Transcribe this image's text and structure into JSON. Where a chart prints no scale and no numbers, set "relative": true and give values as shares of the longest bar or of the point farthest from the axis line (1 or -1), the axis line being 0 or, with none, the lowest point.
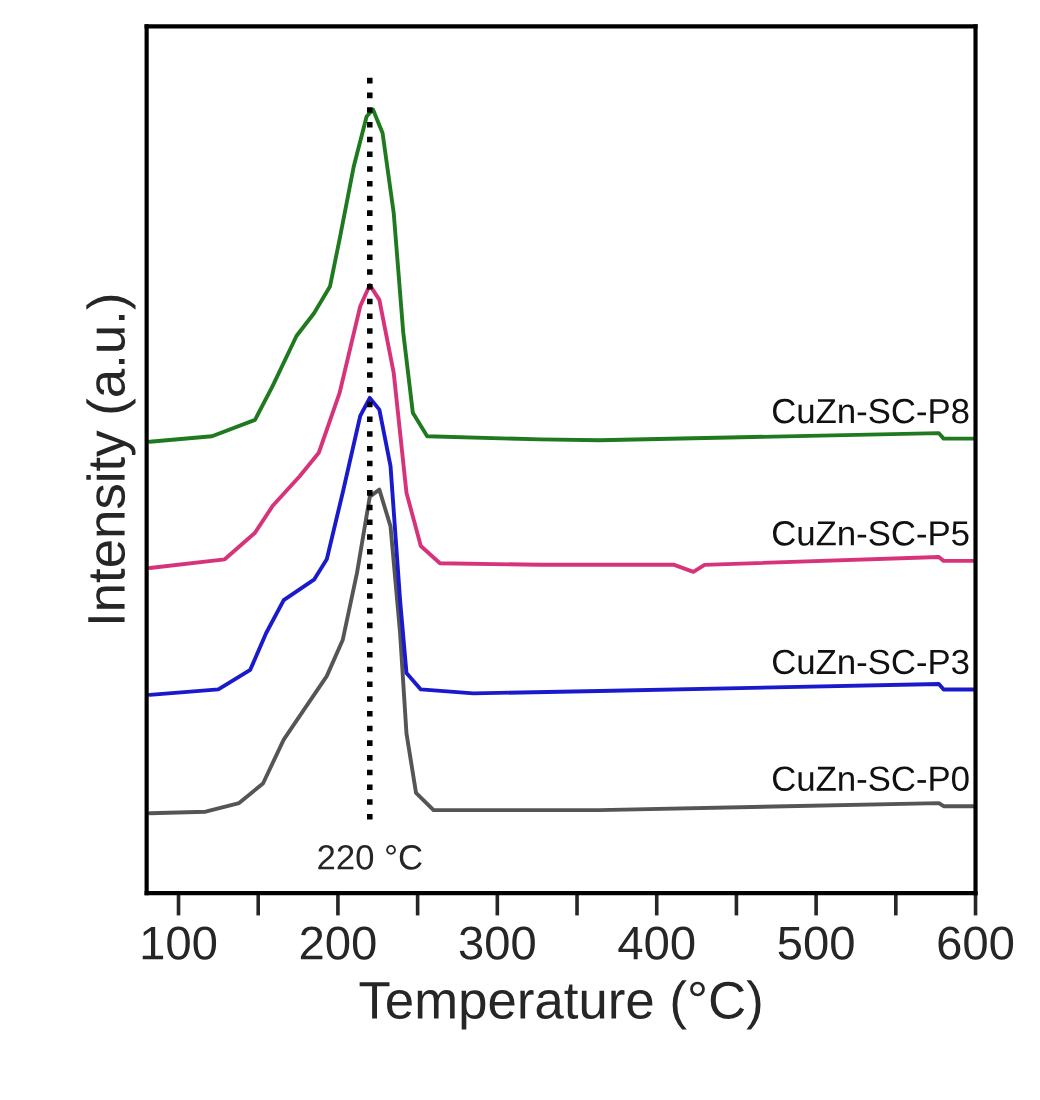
{
  "chart_data": {
    "type": "line",
    "relative": true,
    "xlabel": "Temperature (°C)",
    "ylabel": "Intensity (a.u.)",
    "xlim": [
      80,
      600
    ],
    "xticks": [
      100,
      {
        "value": 150,
        "label": null
      },
      200,
      {
        "value": 250,
        "label": null
      },
      300,
      {
        "value": 350,
        "label": null
      },
      400,
      {
        "value": 450,
        "label": null
      },
      500,
      {
        "value": 550,
        "label": null
      },
      600
    ],
    "tick_labels": "x",
    "grid": false,
    "legend": false,
    "marker": "none",
    "line_style": "solid",
    "ref_lines": [
      {
        "axis": "x",
        "value": 220,
        "label": "220 °C",
        "color": "#000000",
        "line_style": "dotted"
      }
    ],
    "series": [
      {
        "name": "CuZn-SC-P0",
        "color": "#555555",
        "x": [
          82,
          117,
          138,
          153,
          166,
          180,
          193,
          203,
          212,
          220,
          226,
          233,
          239,
          243,
          249,
          260,
          327,
          364,
          577,
          580,
          600
        ],
        "values": [
          0.102,
          0.104,
          0.115,
          0.14,
          0.196,
          0.238,
          0.277,
          0.323,
          0.409,
          0.506,
          0.515,
          0.468,
          0.332,
          0.204,
          0.128,
          0.106,
          0.106,
          0.106,
          0.115,
          0.111,
          0.111
        ]
      },
      {
        "name": "CuZn-SC-P3",
        "color": "#1a1acc",
        "x": [
          82,
          125,
          145,
          155,
          166,
          185,
          193,
          203,
          214,
          220,
          226,
          233,
          239,
          243,
          252,
          285,
          364,
          577,
          580,
          600
        ],
        "values": [
          0.253,
          0.26,
          0.285,
          0.332,
          0.374,
          0.4,
          0.426,
          0.511,
          0.609,
          0.632,
          0.617,
          0.545,
          0.374,
          0.281,
          0.26,
          0.255,
          0.258,
          0.267,
          0.26,
          0.26
        ]
      },
      {
        "name": "CuZn-SC-P5",
        "color": "#d6337a",
        "x": [
          82,
          129,
          148,
          159,
          176,
          188,
          201,
          214,
          220,
          226,
          235,
          243,
          252,
          264,
          327,
          411,
          423,
          430,
          577,
          580,
          600
        ],
        "values": [
          0.415,
          0.426,
          0.46,
          0.494,
          0.532,
          0.562,
          0.638,
          0.749,
          0.776,
          0.757,
          0.664,
          0.511,
          0.443,
          0.421,
          0.419,
          0.419,
          0.41,
          0.419,
          0.429,
          0.424,
          0.424
        ]
      },
      {
        "name": "CuZn-SC-P8",
        "color": "#1f7a1f",
        "x": [
          82,
          121,
          148,
          159,
          174,
          185,
          195,
          201,
          210,
          218,
          222,
          228,
          235,
          241,
          247,
          256,
          327,
          364,
          577,
          580,
          600
        ],
        "values": [
          0.576,
          0.583,
          0.604,
          0.647,
          0.711,
          0.74,
          0.774,
          0.834,
          0.928,
          0.991,
          1.0,
          0.97,
          0.868,
          0.715,
          0.613,
          0.583,
          0.579,
          0.578,
          0.587,
          0.58,
          0.58
        ]
      }
    ]
  }
}
